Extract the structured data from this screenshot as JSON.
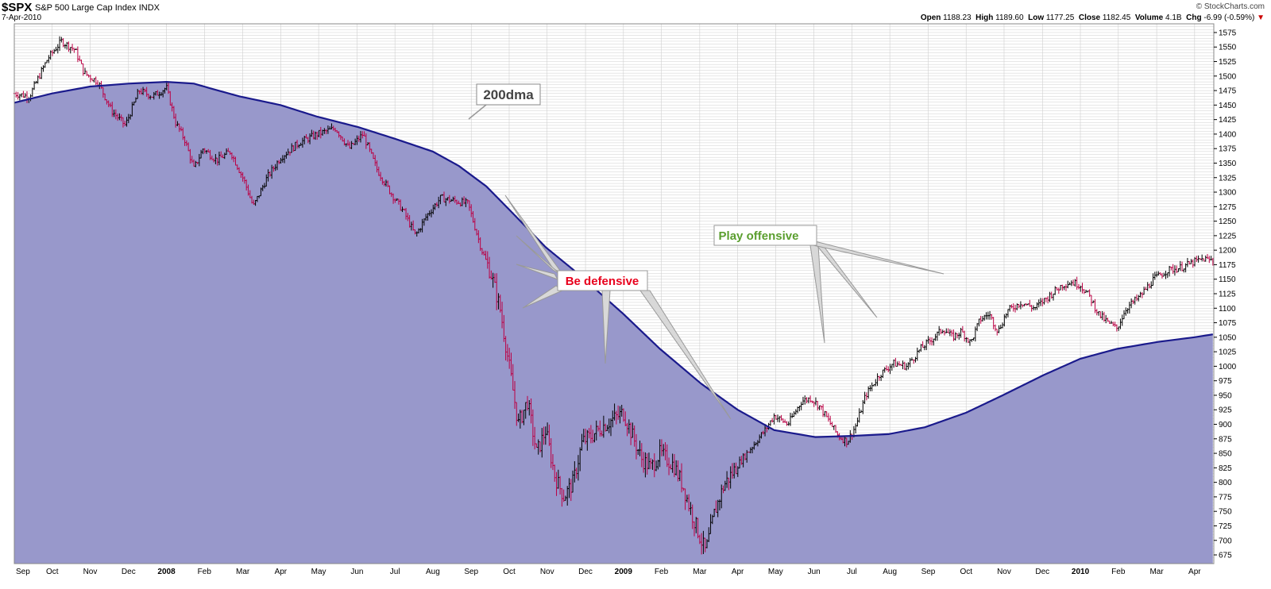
{
  "header": {
    "symbol": "$SPX",
    "description": "S&P 500 Large Cap Index",
    "exchange": "INDX",
    "date": "7-Apr-2010",
    "brand": "© StockCharts.com",
    "open_label": "Open",
    "open": "1188.23",
    "high_label": "High",
    "high": "1189.60",
    "low_label": "Low",
    "low": "1177.25",
    "close_label": "Close",
    "close": "1182.45",
    "volume_label": "Volume",
    "volume": "4.1B",
    "chg_label": "Chg",
    "chg": "-6.99 (-0.59%)",
    "chg_marker": "▼"
  },
  "colors": {
    "ma_fill": "#9898cb",
    "ma_line": "#1a1a8c",
    "up_bar": "#000000",
    "down_bar": "#bb0044",
    "grid": "#cfcfcf",
    "defensive_text": "#e8001c",
    "offensive_text": "#5a9e2e",
    "ma_label_text": "#444444"
  },
  "chart_data": {
    "type": "line",
    "ylim": [
      660,
      1590
    ],
    "y_ticks": [
      675,
      700,
      725,
      750,
      775,
      800,
      825,
      850,
      875,
      900,
      925,
      950,
      975,
      1000,
      1025,
      1050,
      1075,
      1100,
      1125,
      1150,
      1175,
      1200,
      1225,
      1250,
      1275,
      1300,
      1325,
      1350,
      1375,
      1400,
      1425,
      1450,
      1475,
      1500,
      1525,
      1550,
      1575
    ],
    "x_range": [
      2007.667,
      2010.292
    ],
    "x_ticks": [
      {
        "label": "Sep",
        "x": 2007.667,
        "bold": false
      },
      {
        "label": "Oct",
        "x": 2007.75,
        "bold": false
      },
      {
        "label": "Nov",
        "x": 2007.833,
        "bold": false
      },
      {
        "label": "Dec",
        "x": 2007.917,
        "bold": false
      },
      {
        "label": "2008",
        "x": 2008.0,
        "bold": true
      },
      {
        "label": "Feb",
        "x": 2008.083,
        "bold": false
      },
      {
        "label": "Mar",
        "x": 2008.167,
        "bold": false
      },
      {
        "label": "Apr",
        "x": 2008.25,
        "bold": false
      },
      {
        "label": "May",
        "x": 2008.333,
        "bold": false
      },
      {
        "label": "Jun",
        "x": 2008.417,
        "bold": false
      },
      {
        "label": "Jul",
        "x": 2008.5,
        "bold": false
      },
      {
        "label": "Aug",
        "x": 2008.583,
        "bold": false
      },
      {
        "label": "Sep",
        "x": 2008.667,
        "bold": false
      },
      {
        "label": "Oct",
        "x": 2008.75,
        "bold": false
      },
      {
        "label": "Nov",
        "x": 2008.833,
        "bold": false
      },
      {
        "label": "Dec",
        "x": 2008.917,
        "bold": false
      },
      {
        "label": "2009",
        "x": 2009.0,
        "bold": true
      },
      {
        "label": "Feb",
        "x": 2009.083,
        "bold": false
      },
      {
        "label": "Mar",
        "x": 2009.167,
        "bold": false
      },
      {
        "label": "Apr",
        "x": 2009.25,
        "bold": false
      },
      {
        "label": "May",
        "x": 2009.333,
        "bold": false
      },
      {
        "label": "Jun",
        "x": 2009.417,
        "bold": false
      },
      {
        "label": "Jul",
        "x": 2009.5,
        "bold": false
      },
      {
        "label": "Aug",
        "x": 2009.583,
        "bold": false
      },
      {
        "label": "Sep",
        "x": 2009.667,
        "bold": false
      },
      {
        "label": "Oct",
        "x": 2009.75,
        "bold": false
      },
      {
        "label": "Nov",
        "x": 2009.833,
        "bold": false
      },
      {
        "label": "Dec",
        "x": 2009.917,
        "bold": false
      },
      {
        "label": "2010",
        "x": 2010.0,
        "bold": true
      },
      {
        "label": "Feb",
        "x": 2010.083,
        "bold": false
      },
      {
        "label": "Mar",
        "x": 2010.167,
        "bold": false
      },
      {
        "label": "Apr",
        "x": 2010.25,
        "bold": false
      }
    ],
    "series": [
      {
        "kind": "price",
        "points": [
          [
            2007.667,
            1470
          ],
          [
            2007.7,
            1465
          ],
          [
            2007.74,
            1530
          ],
          [
            2007.77,
            1560
          ],
          [
            2007.8,
            1545
          ],
          [
            2007.82,
            1505
          ],
          [
            2007.85,
            1490
          ],
          [
            2007.88,
            1440
          ],
          [
            2007.91,
            1415
          ],
          [
            2007.94,
            1475
          ],
          [
            2007.97,
            1465
          ],
          [
            2008.0,
            1480
          ],
          [
            2008.02,
            1420
          ],
          [
            2008.04,
            1390
          ],
          [
            2008.06,
            1340
          ],
          [
            2008.08,
            1375
          ],
          [
            2008.11,
            1355
          ],
          [
            2008.14,
            1370
          ],
          [
            2008.17,
            1320
          ],
          [
            2008.19,
            1275
          ],
          [
            2008.22,
            1325
          ],
          [
            2008.25,
            1360
          ],
          [
            2008.29,
            1385
          ],
          [
            2008.33,
            1400
          ],
          [
            2008.37,
            1410
          ],
          [
            2008.4,
            1375
          ],
          [
            2008.43,
            1400
          ],
          [
            2008.46,
            1340
          ],
          [
            2008.49,
            1300
          ],
          [
            2008.52,
            1265
          ],
          [
            2008.545,
            1225
          ],
          [
            2008.57,
            1260
          ],
          [
            2008.6,
            1290
          ],
          [
            2008.63,
            1285
          ],
          [
            2008.66,
            1280
          ],
          [
            2008.69,
            1200
          ],
          [
            2008.71,
            1160
          ],
          [
            2008.73,
            1100
          ],
          [
            2008.75,
            1000
          ],
          [
            2008.77,
            900
          ],
          [
            2008.79,
            940
          ],
          [
            2008.81,
            850
          ],
          [
            2008.83,
            890
          ],
          [
            2008.85,
            810
          ],
          [
            2008.87,
            775
          ],
          [
            2008.89,
            800
          ],
          [
            2008.91,
            870
          ],
          [
            2008.93,
            880
          ],
          [
            2008.96,
            900
          ],
          [
            2009.0,
            920
          ],
          [
            2009.02,
            880
          ],
          [
            2009.04,
            840
          ],
          [
            2009.06,
            825
          ],
          [
            2009.08,
            850
          ],
          [
            2009.11,
            830
          ],
          [
            2009.13,
            795
          ],
          [
            2009.15,
            745
          ],
          [
            2009.17,
            700
          ],
          [
            2009.18,
            680
          ],
          [
            2009.2,
            750
          ],
          [
            2009.22,
            795
          ],
          [
            2009.25,
            830
          ],
          [
            2009.28,
            860
          ],
          [
            2009.31,
            890
          ],
          [
            2009.33,
            915
          ],
          [
            2009.36,
            900
          ],
          [
            2009.39,
            940
          ],
          [
            2009.41,
            945
          ],
          [
            2009.43,
            930
          ],
          [
            2009.45,
            905
          ],
          [
            2009.47,
            880
          ],
          [
            2009.49,
            870
          ],
          [
            2009.51,
            900
          ],
          [
            2009.53,
            950
          ],
          [
            2009.56,
            985
          ],
          [
            2009.59,
            1005
          ],
          [
            2009.62,
            1000
          ],
          [
            2009.65,
            1030
          ],
          [
            2009.68,
            1050
          ],
          [
            2009.7,
            1065
          ],
          [
            2009.72,
            1050
          ],
          [
            2009.74,
            1060
          ],
          [
            2009.76,
            1040
          ],
          [
            2009.78,
            1080
          ],
          [
            2009.8,
            1090
          ],
          [
            2009.82,
            1060
          ],
          [
            2009.84,
            1095
          ],
          [
            2009.87,
            1110
          ],
          [
            2009.9,
            1100
          ],
          [
            2009.93,
            1120
          ],
          [
            2009.96,
            1140
          ],
          [
            2009.98,
            1145
          ],
          [
            2010.0,
            1140
          ],
          [
            2010.02,
            1120
          ],
          [
            2010.04,
            1090
          ],
          [
            2010.06,
            1075
          ],
          [
            2010.08,
            1065
          ],
          [
            2010.1,
            1100
          ],
          [
            2010.13,
            1120
          ],
          [
            2010.16,
            1150
          ],
          [
            2010.19,
            1165
          ],
          [
            2010.22,
            1170
          ],
          [
            2010.25,
            1180
          ],
          [
            2010.27,
            1185
          ],
          [
            2010.29,
            1182
          ]
        ]
      },
      {
        "kind": "moving-average",
        "points": [
          [
            2007.667,
            1454
          ],
          [
            2007.75,
            1470
          ],
          [
            2007.833,
            1482
          ],
          [
            2007.917,
            1487
          ],
          [
            2008.0,
            1490
          ],
          [
            2008.06,
            1487
          ],
          [
            2008.1,
            1478
          ],
          [
            2008.16,
            1465
          ],
          [
            2008.25,
            1450
          ],
          [
            2008.33,
            1430
          ],
          [
            2008.42,
            1412
          ],
          [
            2008.5,
            1392
          ],
          [
            2008.583,
            1370
          ],
          [
            2008.64,
            1345
          ],
          [
            2008.7,
            1310
          ],
          [
            2008.75,
            1270
          ],
          [
            2008.83,
            1205
          ],
          [
            2008.9,
            1160
          ],
          [
            2009.0,
            1090
          ],
          [
            2009.08,
            1030
          ],
          [
            2009.17,
            970
          ],
          [
            2009.25,
            925
          ],
          [
            2009.33,
            890
          ],
          [
            2009.42,
            878
          ],
          [
            2009.5,
            880
          ],
          [
            2009.58,
            883
          ],
          [
            2009.66,
            895
          ],
          [
            2009.75,
            920
          ],
          [
            2009.83,
            950
          ],
          [
            2009.92,
            985
          ],
          [
            2010.0,
            1013
          ],
          [
            2010.08,
            1030
          ],
          [
            2010.17,
            1042
          ],
          [
            2010.25,
            1050
          ],
          [
            2010.29,
            1055
          ]
        ]
      }
    ],
    "annotations": [
      {
        "text": "200dma",
        "style": "ma"
      },
      {
        "text": "Be defensive",
        "style": "defensive"
      },
      {
        "text": "Play offensive",
        "style": "offensive"
      }
    ]
  }
}
